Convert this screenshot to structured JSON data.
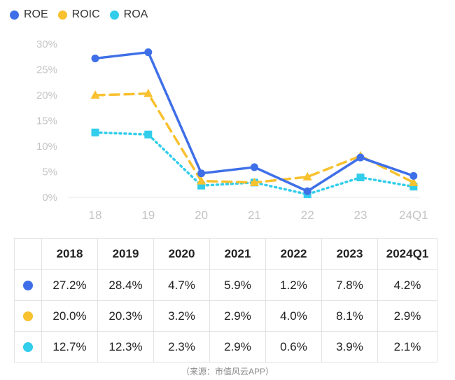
{
  "colors": {
    "roe": "#3F6FE8",
    "roic": "#F7C12F",
    "roa": "#32CDEB"
  },
  "legend": [
    {
      "key": "roe",
      "label": "ROE"
    },
    {
      "key": "roic",
      "label": "ROIC"
    },
    {
      "key": "roa",
      "label": "ROA"
    }
  ],
  "chart_data": {
    "type": "line",
    "categories": [
      "18",
      "19",
      "20",
      "21",
      "22",
      "23",
      "24Q1"
    ],
    "y_ticks": [
      "0%",
      "5%",
      "10%",
      "15%",
      "20%",
      "25%",
      "30%"
    ],
    "ylim": [
      0,
      30
    ],
    "series": [
      {
        "key": "roe",
        "name": "ROE",
        "style": "solid",
        "marker": "circle",
        "values": [
          27.2,
          28.4,
          4.7,
          5.9,
          1.2,
          7.8,
          4.2
        ]
      },
      {
        "key": "roic",
        "name": "ROIC",
        "style": "dashed",
        "marker": "triangle",
        "values": [
          20.0,
          20.3,
          3.2,
          2.9,
          4.0,
          8.1,
          2.9
        ]
      },
      {
        "key": "roa",
        "name": "ROA",
        "style": "dotted",
        "marker": "square",
        "values": [
          12.7,
          12.3,
          2.3,
          2.9,
          0.6,
          3.9,
          2.1
        ]
      }
    ]
  },
  "table": {
    "headers": [
      "2018",
      "2019",
      "2020",
      "2021",
      "2022",
      "2023",
      "2024Q1"
    ],
    "rows": [
      {
        "key": "roe",
        "cells": [
          "27.2%",
          "28.4%",
          "4.7%",
          "5.9%",
          "1.2%",
          "7.8%",
          "4.2%"
        ]
      },
      {
        "key": "roic",
        "cells": [
          "20.0%",
          "20.3%",
          "3.2%",
          "2.9%",
          "4.0%",
          "8.1%",
          "2.9%"
        ]
      },
      {
        "key": "roa",
        "cells": [
          "12.7%",
          "12.3%",
          "2.3%",
          "2.9%",
          "0.6%",
          "3.9%",
          "2.1%"
        ]
      }
    ]
  },
  "source": "（来源：市值风云APP）"
}
